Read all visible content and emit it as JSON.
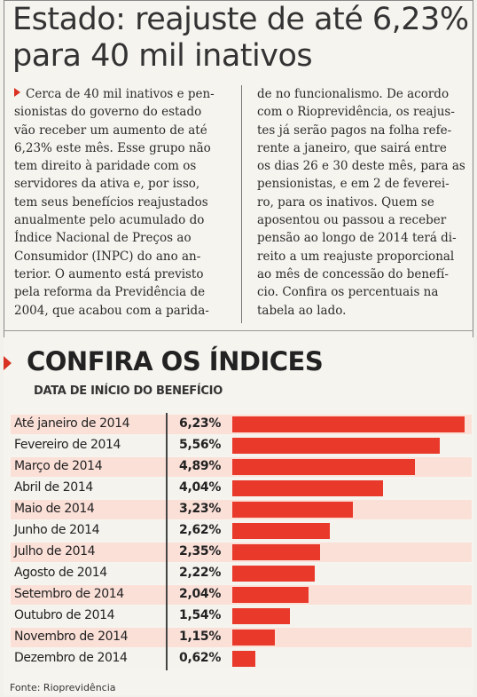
{
  "article": {
    "headline": "Estado: reajuste de até 6,23% para 40 mil inativos",
    "col1_lines": [
      "Cerca de 40 mil inativos e pen-",
      "sionistas do governo do estado",
      "vão receber um aumento de até",
      "6,23% este mês. Esse grupo não",
      "tem direito à paridade com os",
      "servidores da ativa e, por isso,",
      "tem seus benefícios reajustados",
      "anualmente pelo acumulado do",
      "Índice Nacional de Preços ao",
      "Consumidor (INPC) do ano an-",
      "terior. O aumento está previsto",
      "pela reforma da Previdência de",
      "2004, que acabou com a parida-"
    ],
    "col2_lines": [
      "de no funcionalismo. De acordo",
      "com o Rioprevidência, os reajus-",
      "tes já serão pagos na folha refe-",
      "rente a janeiro, que sairá entre",
      "os dias 26 e 30 deste mês, para as",
      "pensionistas, e em 2 de feverei-",
      "ro, para os inativos. Quem se",
      "aposentou ou passou a receber",
      "pensão ao longo de 2014 terá di-",
      "reito a um reajuste proporcional",
      "ao mês de concessão do benefí-",
      "cio. Confira os percentuais na",
      "tabela ao lado."
    ]
  },
  "chart_data": {
    "type": "bar",
    "title": "CONFIRA OS ÍNDICES",
    "subtitle": "DATA DE INÍCIO DO BENEFÍCIO",
    "categories": [
      "Até janeiro de 2014",
      "Fevereiro de 2014",
      "Março de 2014",
      "Abril de 2014",
      "Maio de 2014",
      "Junho de 2014",
      "Julho de 2014",
      "Agosto de 2014",
      "Setembro de 2014",
      "Outubro de 2014",
      "Novembro de 2014",
      "Dezembro de 2014"
    ],
    "values": [
      6.23,
      5.56,
      4.89,
      4.04,
      3.23,
      2.62,
      2.35,
      2.22,
      2.04,
      1.54,
      1.15,
      0.62
    ],
    "value_labels": [
      "6,23%",
      "5,56%",
      "4,89%",
      "4,04%",
      "3,23%",
      "2,62%",
      "2,35%",
      "2,22%",
      "2,04%",
      "1,54%",
      "1,15%",
      "0,62%"
    ],
    "bar_color": "#e8392a",
    "source": "Fonte: Rioprevidência"
  }
}
